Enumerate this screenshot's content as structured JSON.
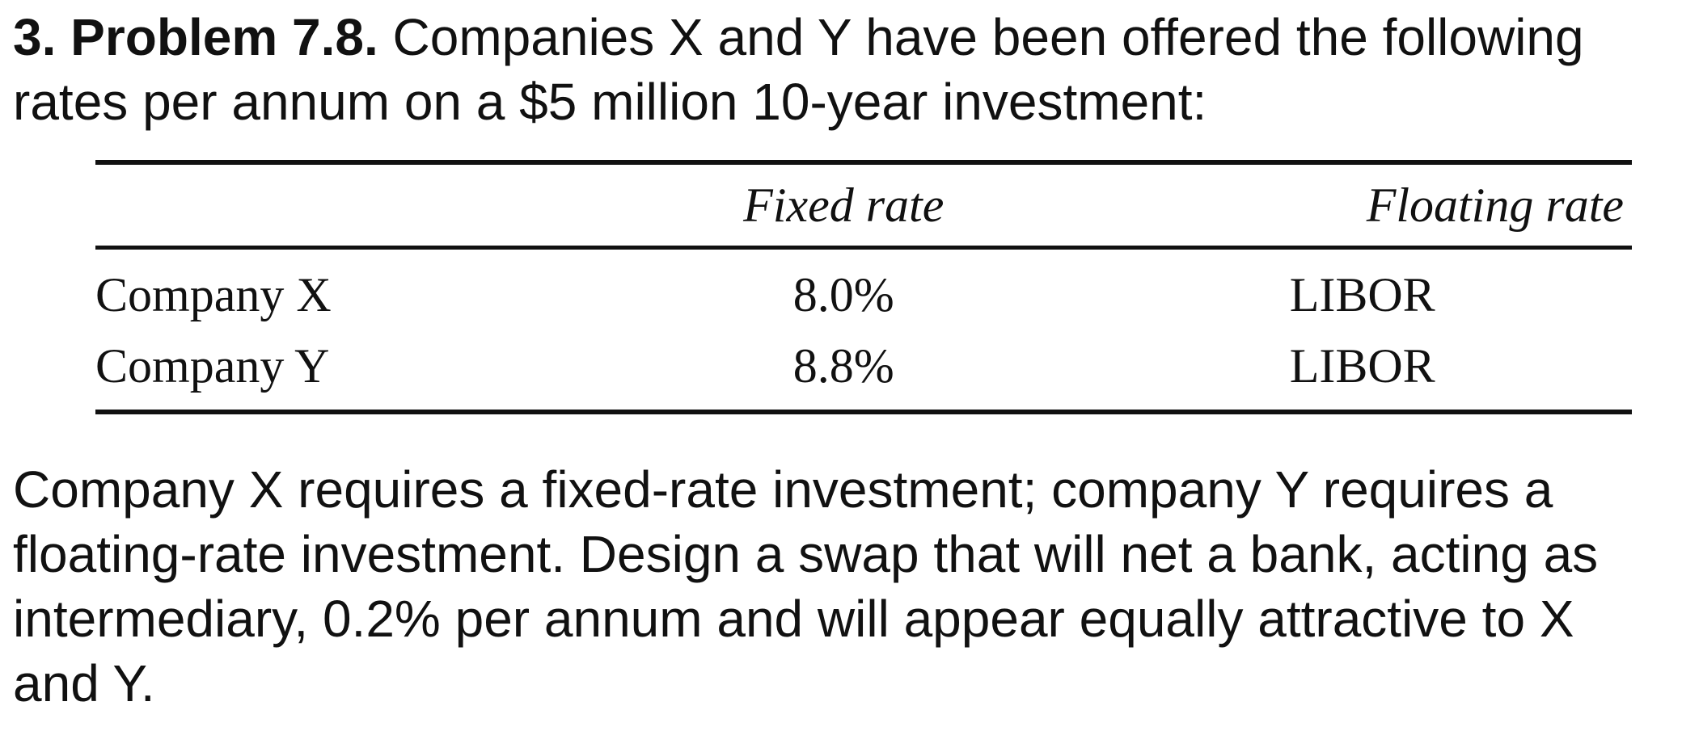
{
  "problem": {
    "label": "3. Problem 7.8.",
    "intro": "Companies X and Y have been offered the following rates per annum on a $5 million 10-year investment:"
  },
  "table": {
    "headers": [
      "",
      "Fixed rate",
      "Floating rate"
    ],
    "rows": [
      {
        "company": "Company X",
        "fixed": "8.0%",
        "floating": "LIBOR"
      },
      {
        "company": "Company Y",
        "fixed": "8.8%",
        "floating": "LIBOR"
      }
    ]
  },
  "question": "Company X requires a fixed-rate investment; company Y requires a floating-rate investment. Design a swap that will net a bank, acting as intermediary, 0.2% per annum and will appear equally attractive to X and Y."
}
